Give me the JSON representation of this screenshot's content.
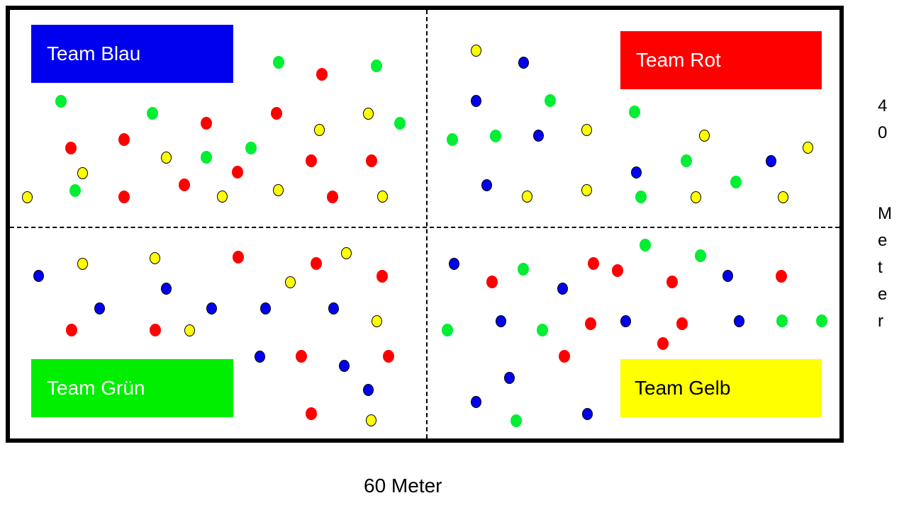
{
  "teams": {
    "blau": {
      "label": "Team Blau",
      "bg": "#0000ee",
      "fg": "#ffffff"
    },
    "rot": {
      "label": "Team Rot",
      "bg": "#ff0000",
      "fg": "#ffffff"
    },
    "gruen": {
      "label": "Team Grün",
      "bg": "#00ee00",
      "fg": "#ffffff"
    },
    "gelb": {
      "label": "Team Gelb",
      "bg": "#ffff00",
      "fg": "#000000"
    }
  },
  "dimensions": {
    "height_label_chars": [
      "4",
      "0",
      "",
      "M",
      "e",
      "t",
      "e",
      "r"
    ],
    "width_label": "60 Meter"
  },
  "player_colors": {
    "green": "#00ee33",
    "red": "#ff0000",
    "yellow": "#ffff00",
    "blue": "#0000ee"
  }
}
